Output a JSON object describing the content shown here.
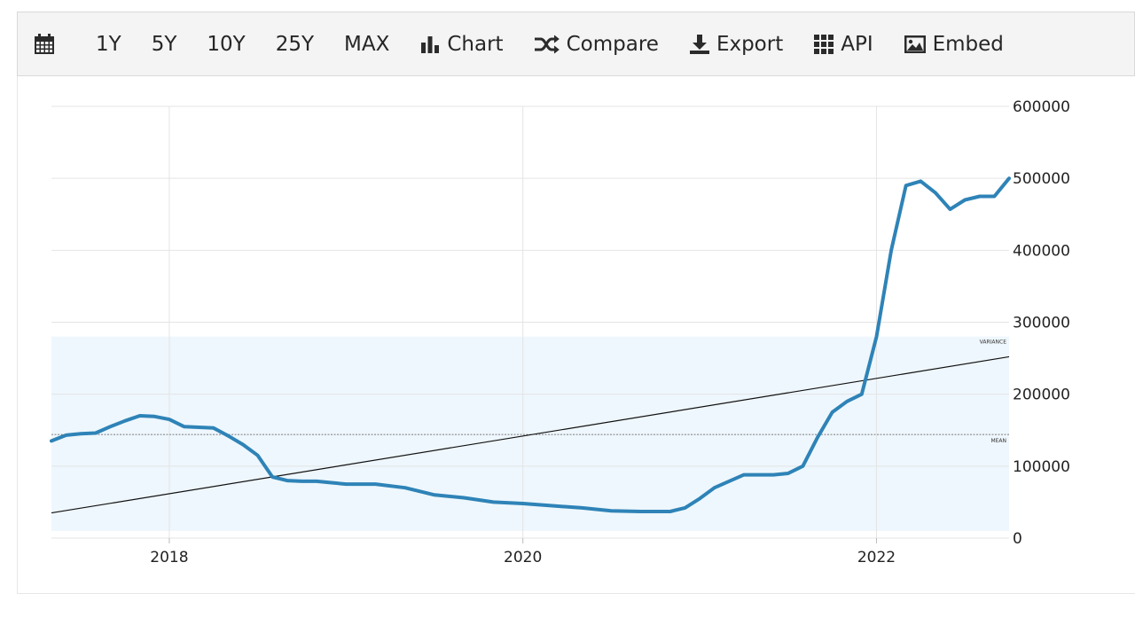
{
  "toolbar": {
    "calendar_icon": "calendar-icon",
    "ranges": [
      "1Y",
      "5Y",
      "10Y",
      "25Y",
      "MAX"
    ],
    "chart_label": "Chart",
    "compare_label": "Compare",
    "export_label": "Export",
    "api_label": "API",
    "embed_label": "Embed"
  },
  "chart_data": {
    "type": "line",
    "title": "",
    "xlabel": "",
    "ylabel": "",
    "x_ticks": [
      "2018",
      "2020",
      "2022"
    ],
    "y_ticks": [
      "0",
      "100000",
      "200000",
      "300000",
      "400000",
      "500000",
      "600000"
    ],
    "ylim": [
      0,
      600000
    ],
    "xlim": [
      "2017-05",
      "2022-10"
    ],
    "grid": true,
    "series": [
      {
        "color": "#2e83b7",
        "x": [
          "2017-05",
          "2017-06",
          "2017-07",
          "2017-08",
          "2017-09",
          "2017-10",
          "2017-11",
          "2017-12",
          "2018-01",
          "2018-02",
          "2018-03",
          "2018-04",
          "2018-05",
          "2018-06",
          "2018-07",
          "2018-08",
          "2018-09",
          "2018-10",
          "2018-11",
          "2018-12",
          "2019-01",
          "2019-03",
          "2019-05",
          "2019-07",
          "2019-09",
          "2019-11",
          "2020-01",
          "2020-03",
          "2020-05",
          "2020-07",
          "2020-09",
          "2020-11",
          "2020-12",
          "2021-01",
          "2021-02",
          "2021-04",
          "2021-06",
          "2021-07",
          "2021-08",
          "2021-09",
          "2021-10",
          "2021-11",
          "2021-12",
          "2022-01",
          "2022-02",
          "2022-03",
          "2022-04",
          "2022-05",
          "2022-06",
          "2022-07",
          "2022-08",
          "2022-09",
          "2022-10"
        ],
        "y": [
          135000,
          143000,
          145000,
          146000,
          155000,
          163000,
          170000,
          169000,
          165000,
          155000,
          154000,
          153000,
          142000,
          130000,
          115000,
          85000,
          80000,
          79000,
          79000,
          77000,
          75000,
          75000,
          70000,
          60000,
          56000,
          50000,
          48000,
          45000,
          42000,
          38000,
          37000,
          37000,
          42000,
          55000,
          70000,
          88000,
          88000,
          90000,
          100000,
          140000,
          175000,
          190000,
          200000,
          280000,
          400000,
          490000,
          496000,
          480000,
          457000,
          470000,
          475000,
          475000,
          500000
        ]
      }
    ],
    "trend_line": {
      "x": [
        "2017-05",
        "2022-10"
      ],
      "y": [
        35000,
        252000
      ]
    },
    "mean": {
      "value": 144000,
      "label": "MEAN"
    },
    "variance_band": {
      "y": [
        10000,
        280000
      ],
      "label": "VARIANCE"
    }
  }
}
